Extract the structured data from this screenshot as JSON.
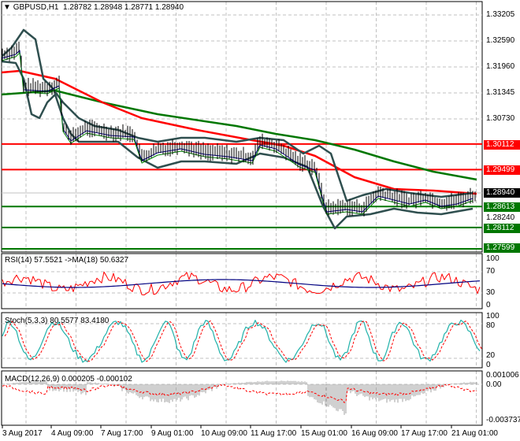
{
  "header": {
    "symbol": "GBPUSD,H1",
    "open": "1.28782",
    "high": "1.28948",
    "low": "1.28771",
    "close": "1.28940"
  },
  "price_axis": [
    "1.33205",
    "1.32590",
    "1.31960",
    "1.31345",
    "1.30730",
    "1.28240"
  ],
  "levels": [
    {
      "value": "1.30112",
      "color": "#ff0000"
    },
    {
      "value": "1.29499",
      "color": "#ff0000"
    },
    {
      "value": "1.28613",
      "color": "#007700"
    },
    {
      "value": "1.28112",
      "color": "#007700"
    },
    {
      "value": "1.27599",
      "color": "#007700"
    }
  ],
  "current_price": "1.28940",
  "rsi": {
    "title": "RSI(14) 57.5521  ->MA(18) 50.6327",
    "axis": [
      "100",
      "70",
      "30",
      "0"
    ]
  },
  "stoch": {
    "title": "Stoch(5,3,3) 80.5577 83.4180",
    "axis": [
      "100",
      "80",
      "20",
      "0"
    ]
  },
  "macd": {
    "title": "MACD(12,26,9) 0.000205 -0.000102",
    "axis": [
      "0.001006",
      "0.00",
      "-0.003737"
    ]
  },
  "time_axis": [
    "3 Aug 2017",
    "4 Aug 09:00",
    "7 Aug 17:00",
    "9 Aug 01:00",
    "10 Aug 09:00",
    "11 Aug 17:00",
    "15 Aug 01:00",
    "16 Aug 09:00",
    "17 Aug 17:00",
    "21 Aug 01:00"
  ],
  "colors": {
    "ma_fast": "#ff0000",
    "ma_slow": "#007700",
    "bands": "#2f4f4f",
    "rsi": "#ff0000",
    "rsi_ma": "#000080",
    "stoch_main": "#20b2aa",
    "signal": "#ff0000"
  }
}
